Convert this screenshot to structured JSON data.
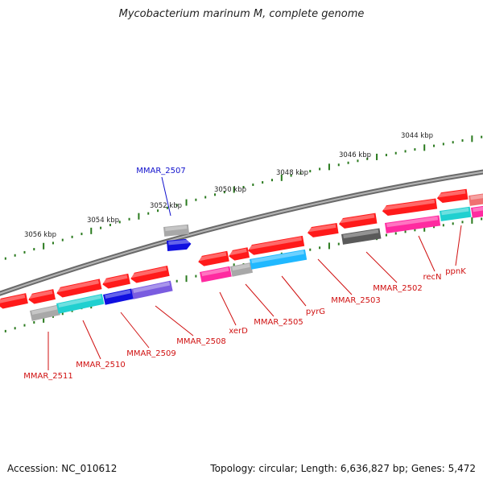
{
  "title": "Mycobacterium marinum M, complete genome",
  "footer": {
    "accession": "Accession: NC_010612",
    "summary": "Topology: circular; Length: 6,636,827 bp; Genes: 5,472"
  },
  "colors": {
    "backbone": "#8a8a8a",
    "ruler": "#2a7a1e",
    "label": "#d01010",
    "highlight_label": "#1010cc",
    "red_gene": "#ff1a1a",
    "magenta": "#ff2aa0",
    "cyan": "#20d0d0",
    "blue": "#1010e0",
    "lightblue": "#20b8ff",
    "purple": "#7a5ce0",
    "gray": "#a8a8a8",
    "darkgray": "#5a5a5a",
    "salmon": "#f07070"
  },
  "scale_labels": [
    "3044 kbp",
    "3046 kbp",
    "3048 kbp",
    "3050 kbp",
    "3052 kbp",
    "3054 kbp",
    "3056 kbp"
  ],
  "genes": [
    {
      "label": "MMAR_2507",
      "highlight": true
    },
    {
      "label": "MMAR_2511"
    },
    {
      "label": "MMAR_2510"
    },
    {
      "label": "MMAR_2509"
    },
    {
      "label": "MMAR_2508"
    },
    {
      "label": "xerD"
    },
    {
      "label": "MMAR_2505"
    },
    {
      "label": "pyrG"
    },
    {
      "label": "MMAR_2503"
    },
    {
      "label": "MMAR_2502"
    },
    {
      "label": "recN"
    },
    {
      "label": "ppnK"
    }
  ]
}
